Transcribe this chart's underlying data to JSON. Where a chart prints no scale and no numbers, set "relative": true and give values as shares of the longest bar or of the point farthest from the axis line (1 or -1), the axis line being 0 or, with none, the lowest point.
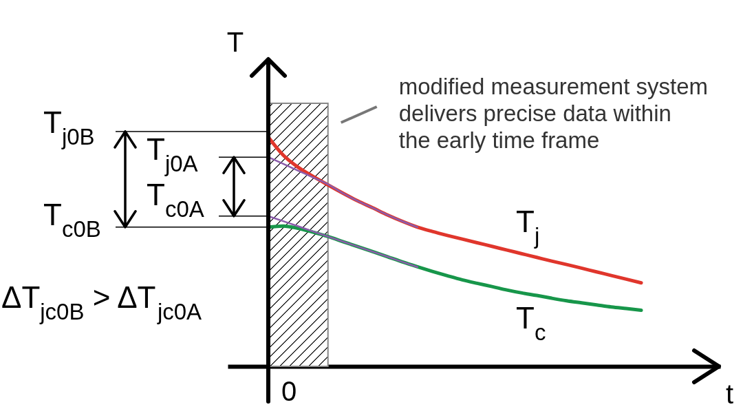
{
  "chart_data": {
    "type": "line",
    "relative": true,
    "xlabel": "t",
    "ylabel": "T",
    "categories": [
      null,
      null,
      null,
      null,
      null,
      null,
      null,
      null,
      null,
      null,
      null,
      null,
      null,
      null,
      null,
      null,
      null,
      null,
      null,
      null,
      null,
      null,
      null,
      null,
      null,
      null
    ],
    "series": [
      {
        "name": "T$_{j}$",
        "color": "#e0362c",
        "values": [
          1.0,
          0.921,
          0.868,
          0.828,
          0.791,
          0.755,
          0.721,
          0.691,
          0.66,
          0.632,
          0.607,
          0.588,
          0.571,
          0.555,
          0.539,
          0.523,
          0.507,
          0.491,
          0.475,
          0.459,
          0.444,
          0.428,
          0.412,
          0.396,
          0.38,
          0.364
        ]
      },
      {
        "name": "T$_{c}$",
        "color": "#17964a",
        "values": [
          0.607,
          0.612,
          0.602,
          0.585,
          0.566,
          0.544,
          0.522,
          0.5,
          0.478,
          0.455,
          0.434,
          0.414,
          0.395,
          0.377,
          0.362,
          0.348,
          0.333,
          0.32,
          0.309,
          0.297,
          0.286,
          0.277,
          0.268,
          0.259,
          0.252,
          0.245
        ]
      },
      {
        "color": "#8b5cab",
        "values": [
          0.912,
          0.883,
          0.853,
          0.824,
          0.794,
          0.755,
          0.721,
          0.691,
          0.66,
          0.632,
          0.607,
          null,
          null,
          null,
          null,
          null,
          null,
          null,
          null,
          null,
          null,
          null,
          null,
          null,
          null,
          null
        ]
      },
      {
        "color": "#8b5cab",
        "values": [
          0.655,
          0.633,
          0.611,
          0.588,
          0.566,
          0.544,
          0.522,
          0.5,
          0.478,
          0.455,
          0.433,
          null,
          null,
          null,
          null,
          null,
          null,
          null,
          null,
          null,
          null,
          null,
          null,
          null,
          null,
          null
        ]
      }
    ],
    "ref_lines": [
      {
        "axis": "y",
        "value": 1.024,
        "label": "T$_{j0B}$"
      },
      {
        "axis": "y",
        "value": 0.912,
        "label": "T$_{j0A}$"
      },
      {
        "axis": "y",
        "value": 0.655,
        "label": "T$_{c0A}$"
      },
      {
        "axis": "y",
        "value": 0.607,
        "label": "T$_{c0B}$"
      }
    ],
    "annotations": [
      "ΔT$_{jc0B}$ > ΔT$_{jc0A}$",
      "modified measurement system\ndelivers precise data within\nthe early time frame",
      "0"
    ]
  }
}
